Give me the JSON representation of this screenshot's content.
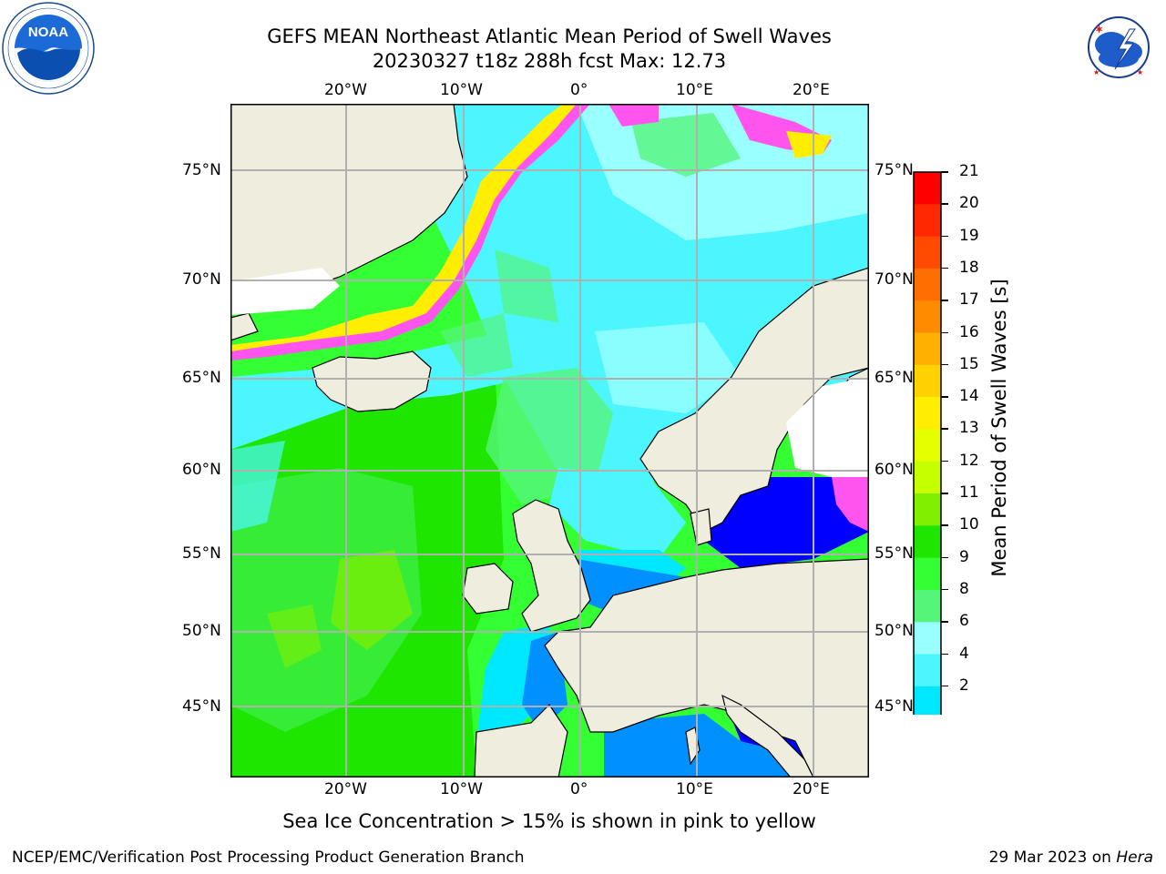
{
  "header": {
    "title_line1": "GEFS MEAN Northeast Atlantic Mean Period of Swell Waves",
    "title_line2": "20230327 t18z 288h fcst   Max: 12.73"
  },
  "logos": {
    "left": "NOAA",
    "left_ring_text": "NATIONAL OCEANIC AND ATMOSPHERIC ADMINISTRATION · U.S. DEPARTMENT OF COMMERCE",
    "right_ring_text": "NATIONAL WEATHER SERVICE"
  },
  "map": {
    "lon_labels": [
      "20°W",
      "10°W",
      "0°",
      "10°E",
      "20°E"
    ],
    "lat_labels": [
      "75°N",
      "70°N",
      "65°N",
      "60°N",
      "55°N",
      "50°N",
      "45°N"
    ]
  },
  "colorbar": {
    "title": "Mean Period of Swell Waves [s]",
    "ticks": [
      "21",
      "20",
      "19",
      "18",
      "17",
      "16",
      "15",
      "14",
      "13",
      "12",
      "11",
      "10",
      "9",
      "8",
      "6",
      "4",
      "2"
    ],
    "colors": [
      "#ff0000",
      "#ff2800",
      "#ff4a00",
      "#ff6e00",
      "#ff8c00",
      "#ffb000",
      "#ffd200",
      "#ffee00",
      "#e6ff00",
      "#c6ff00",
      "#80f000",
      "#1ee600",
      "#33ff33",
      "#55f57a",
      "#99ffff",
      "#4cf6ff",
      "#00e8ff",
      "#0090ff",
      "#005aff",
      "#0000ff"
    ]
  },
  "footer": {
    "note": "Sea Ice Concentration > 15% is shown in pink to yellow",
    "left": "NCEP/EMC/Verification Post Processing Product Generation Branch",
    "date": "29 Mar 2023 on",
    "host": "Hera"
  }
}
